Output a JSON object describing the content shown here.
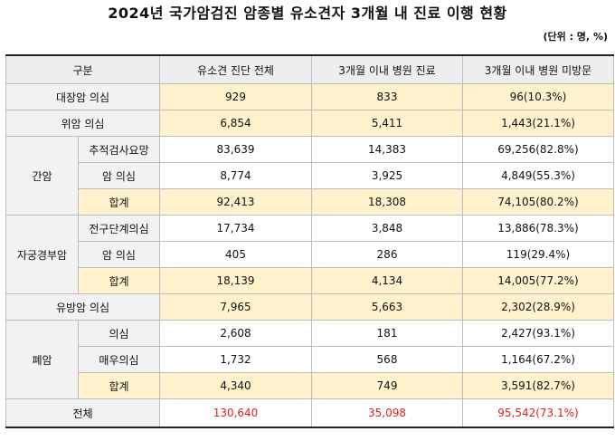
{
  "title": "2024년 국가암검진 암종별 유소견자 3개월 내 진료 이행 현황",
  "unit": "(단위 : 명, %)",
  "columns": [
    "구분",
    "유소견 진단 전체",
    "3개월 이내 병원 진료",
    "3개월 이내 병원 미방문"
  ],
  "rows": {
    "colorectal": {
      "label": "대장암 의심",
      "total": "929",
      "visit": "833",
      "novisit": "96(10.3%)"
    },
    "stomach": {
      "label": "위암 의심",
      "total": "6,854",
      "visit": "5,411",
      "novisit": "1,443(21.1%)"
    },
    "liver": {
      "group": "간암",
      "r1": {
        "label": "추적검사요망",
        "total": "83,639",
        "visit": "14,383",
        "novisit": "69,256(82.8%)"
      },
      "r2": {
        "label": "암 의심",
        "total": "8,774",
        "visit": "3,925",
        "novisit": "4,849(55.3%)"
      },
      "r3": {
        "label": "합계",
        "total": "92,413",
        "visit": "18,308",
        "novisit": "74,105(80.2%)"
      }
    },
    "cervix": {
      "group": "자궁경부암",
      "r1": {
        "label": "전구단계의심",
        "total": "17,734",
        "visit": "3,848",
        "novisit": "13,886(78.3%)"
      },
      "r2": {
        "label": "암 의심",
        "total": "405",
        "visit": "286",
        "novisit": "119(29.4%)"
      },
      "r3": {
        "label": "합계",
        "total": "18,139",
        "visit": "4,134",
        "novisit": "14,005(77.2%)"
      }
    },
    "breast": {
      "label": "유방암 의심",
      "total": "7,965",
      "visit": "5,663",
      "novisit": "2,302(28.9%)"
    },
    "lung": {
      "group": "폐암",
      "r1": {
        "label": "의심",
        "total": "2,608",
        "visit": "181",
        "novisit": "2,427(93.1%)"
      },
      "r2": {
        "label": "매우의심",
        "total": "1,732",
        "visit": "568",
        "novisit": "1,164(67.2%)"
      },
      "r3": {
        "label": "합계",
        "total": "4,340",
        "visit": "749",
        "novisit": "3,591(82.7%)"
      }
    },
    "all": {
      "label": "전체",
      "total": "130,640",
      "visit": "35,098",
      "novisit": "95,542(73.1%)"
    }
  },
  "colors": {
    "highlight": "#fff2cc",
    "header": "#eeeeee",
    "total_text": "#e02020"
  }
}
